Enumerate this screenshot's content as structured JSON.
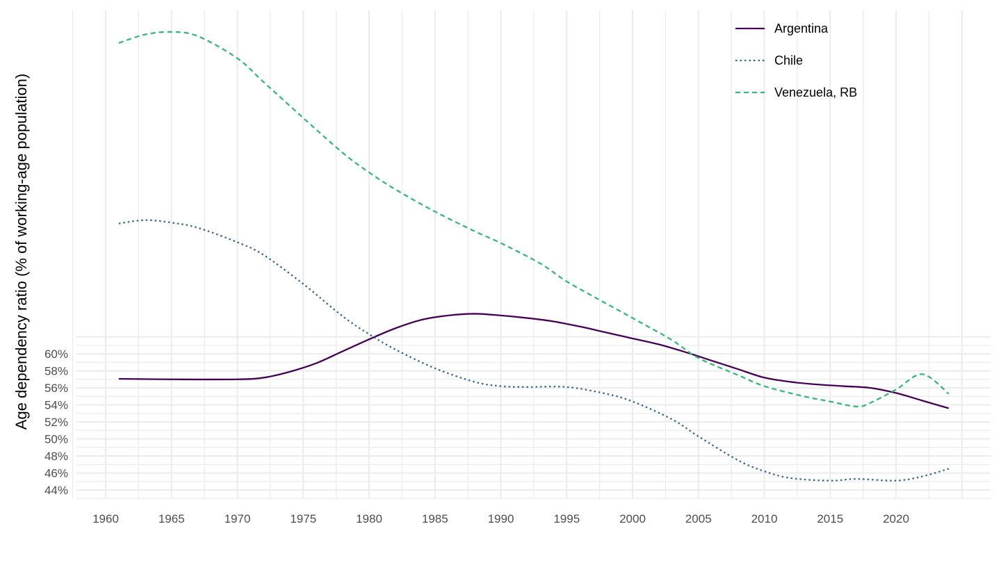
{
  "chart_data": {
    "type": "line",
    "title": "",
    "xlabel": "",
    "ylabel": "Age dependency ratio (% of working-age population)",
    "x_ticks": [
      1960,
      1965,
      1970,
      1975,
      1980,
      1985,
      1990,
      1995,
      2000,
      2005,
      2010,
      2015,
      2020
    ],
    "y_ticks": [
      "44%",
      "46%",
      "48%",
      "50%",
      "52%",
      "54%",
      "56%",
      "58%",
      "60%"
    ],
    "y_tick_values": [
      44,
      46,
      48,
      50,
      52,
      54,
      56,
      58,
      60
    ],
    "xlim": [
      1955.8,
      2025.3
    ],
    "legend_position": "top-right",
    "grid": true,
    "series": [
      {
        "name": "Argentina",
        "color": "#440154",
        "dash": "solid",
        "x": [
          1961,
          1965,
          1970,
          1972,
          1974,
          1976,
          1978,
          1980,
          1982,
          1984,
          1986,
          1988,
          1990,
          1992,
          1994,
          1996,
          1998,
          2000,
          2002,
          2004,
          2006,
          2008,
          2010,
          2012,
          2014,
          2016,
          2018,
          2020,
          2022,
          2024
        ],
        "y": [
          57.06,
          57.0,
          57.0,
          57.2,
          57.9,
          58.9,
          60.3,
          61.7,
          63.0,
          64.0,
          64.5,
          64.7,
          64.5,
          64.2,
          63.8,
          63.2,
          62.5,
          61.8,
          61.1,
          60.2,
          59.2,
          58.2,
          57.2,
          56.7,
          56.4,
          56.2,
          56.0,
          55.4,
          54.5,
          53.6
        ]
      },
      {
        "name": "Chile",
        "color": "#31688e",
        "dash": "dotted",
        "x": [
          1961,
          1963,
          1965,
          1967,
          1970,
          1972,
          1975,
          1978,
          1980,
          1982,
          1985,
          1988,
          1990,
          1992,
          1995,
          1998,
          2000,
          2003,
          2005,
          2008,
          2010,
          2012,
          2015,
          2017,
          2020,
          2022,
          2024
        ],
        "y": [
          75.3,
          75.7,
          75.4,
          74.8,
          73.1,
          71.6,
          68.2,
          64.4,
          62.3,
          60.5,
          58.3,
          56.7,
          56.2,
          56.1,
          56.1,
          55.3,
          54.4,
          52.3,
          50.3,
          47.5,
          46.2,
          45.4,
          45.1,
          45.3,
          45.1,
          45.6,
          46.5
        ]
      },
      {
        "name": "Venezuela, RB",
        "color": "#35b779",
        "dash": "dashed",
        "x": [
          1961,
          1963,
          1965,
          1967,
          1970,
          1972,
          1975,
          1978,
          1980,
          1982,
          1985,
          1988,
          1990,
          1993,
          1995,
          1998,
          2000,
          2003,
          2005,
          2008,
          2010,
          2013,
          2015,
          2017,
          2018,
          2020,
          2022,
          2024
        ],
        "y": [
          96.5,
          97.5,
          97.8,
          97.3,
          94.7,
          91.9,
          87.7,
          83.6,
          81.3,
          79.3,
          76.7,
          74.4,
          73.0,
          70.6,
          68.5,
          65.9,
          64.2,
          61.6,
          59.5,
          57.5,
          56.2,
          55.0,
          54.4,
          53.8,
          54.2,
          55.8,
          57.6,
          55.3
        ]
      }
    ]
  }
}
